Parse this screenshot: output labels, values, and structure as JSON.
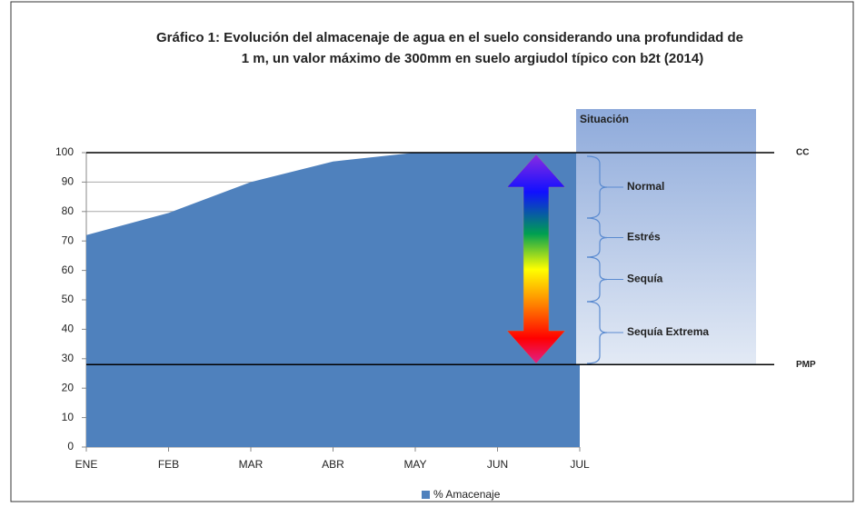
{
  "chart_data": {
    "type": "area",
    "title": [
      "Gráfico 1: Evolución del almacenaje de agua en el suelo considerando una profundidad de",
      "1 m,  un valor máximo de 300mm en suelo argiudol típico con b2t (2014)"
    ],
    "categories": [
      "ENE",
      "FEB",
      "MAR",
      "ABR",
      "MAY",
      "JUN",
      "JUL"
    ],
    "series": [
      {
        "name": "% Amacenaje",
        "color": "#4f81bd",
        "values": [
          72,
          79.5,
          90,
          97,
          100,
          100,
          100
        ]
      }
    ],
    "ylim": [
      0,
      100
    ],
    "yticks": [
      0,
      10,
      20,
      30,
      40,
      50,
      60,
      70,
      80,
      90,
      100
    ],
    "grid": true,
    "reference_lines": [
      {
        "label": "CC",
        "value": 100
      },
      {
        "label": "PMP",
        "value": 28
      }
    ],
    "situation": {
      "title": "Situación",
      "levels": [
        "Normal",
        "Estrés",
        "Sequía",
        "Sequía Extrema"
      ]
    },
    "legend": "bottom"
  }
}
